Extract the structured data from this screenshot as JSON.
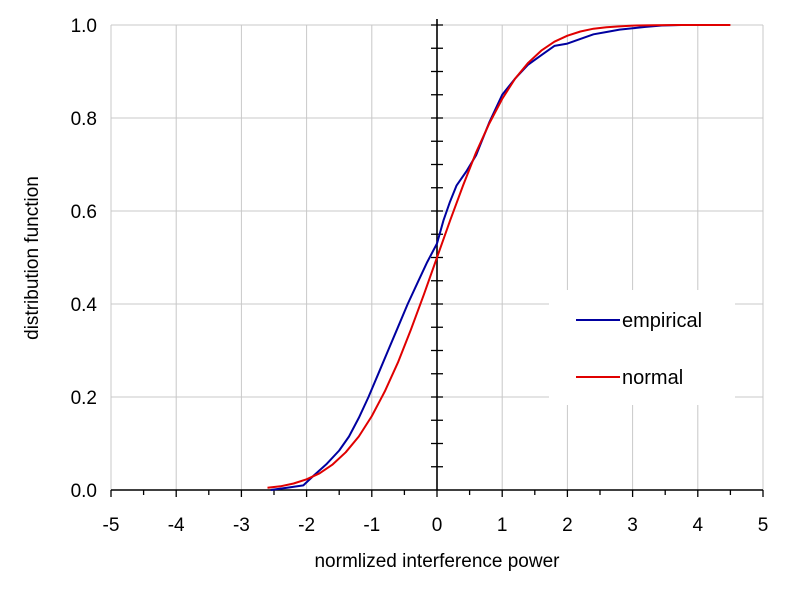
{
  "chart_data": {
    "type": "line",
    "title": "",
    "xlabel": "normlized interference power",
    "ylabel": "distribution function",
    "xlim": [
      -5,
      5
    ],
    "ylim": [
      0,
      1
    ],
    "x_ticks": [
      "-5",
      "-4",
      "-3",
      "-2",
      "-1",
      "0",
      "1",
      "2",
      "3",
      "4",
      "5"
    ],
    "y_ticks": [
      "0.0",
      "0.2",
      "0.4",
      "0.6",
      "0.8",
      "1.0"
    ],
    "grid": true,
    "legend_position": "right",
    "series": [
      {
        "name": "empirical",
        "color": "#0000a0",
        "x": [
          -2.55,
          -2.3,
          -2.05,
          -1.9,
          -1.7,
          -1.5,
          -1.35,
          -1.2,
          -1.05,
          -0.9,
          -0.75,
          -0.6,
          -0.45,
          -0.3,
          -0.15,
          0.0,
          0.1,
          0.2,
          0.3,
          0.45,
          0.6,
          0.8,
          1.0,
          1.2,
          1.4,
          1.6,
          1.8,
          2.0,
          2.2,
          2.4,
          2.6,
          2.8,
          3.0,
          3.2,
          3.45,
          3.75
        ],
        "y": [
          0.0,
          0.005,
          0.01,
          0.03,
          0.055,
          0.085,
          0.115,
          0.155,
          0.2,
          0.25,
          0.3,
          0.35,
          0.4,
          0.445,
          0.49,
          0.53,
          0.58,
          0.62,
          0.655,
          0.685,
          0.72,
          0.79,
          0.85,
          0.885,
          0.915,
          0.935,
          0.955,
          0.96,
          0.97,
          0.98,
          0.985,
          0.99,
          0.993,
          0.996,
          0.999,
          1.0
        ]
      },
      {
        "name": "normal",
        "color": "#e00000",
        "x": [
          -2.6,
          -2.4,
          -2.2,
          -2.0,
          -1.8,
          -1.6,
          -1.4,
          -1.2,
          -1.0,
          -0.8,
          -0.6,
          -0.4,
          -0.2,
          0.0,
          0.2,
          0.4,
          0.6,
          0.8,
          1.0,
          1.2,
          1.4,
          1.6,
          1.8,
          2.0,
          2.2,
          2.4,
          2.6,
          2.8,
          3.0,
          3.3,
          3.7,
          4.1,
          4.5
        ],
        "y": [
          0.005,
          0.008,
          0.014,
          0.023,
          0.036,
          0.055,
          0.081,
          0.115,
          0.159,
          0.212,
          0.274,
          0.345,
          0.421,
          0.5,
          0.579,
          0.655,
          0.726,
          0.788,
          0.841,
          0.885,
          0.919,
          0.945,
          0.964,
          0.977,
          0.986,
          0.992,
          0.995,
          0.997,
          0.9987,
          0.9995,
          0.9999,
          1.0,
          1.0
        ]
      }
    ]
  }
}
